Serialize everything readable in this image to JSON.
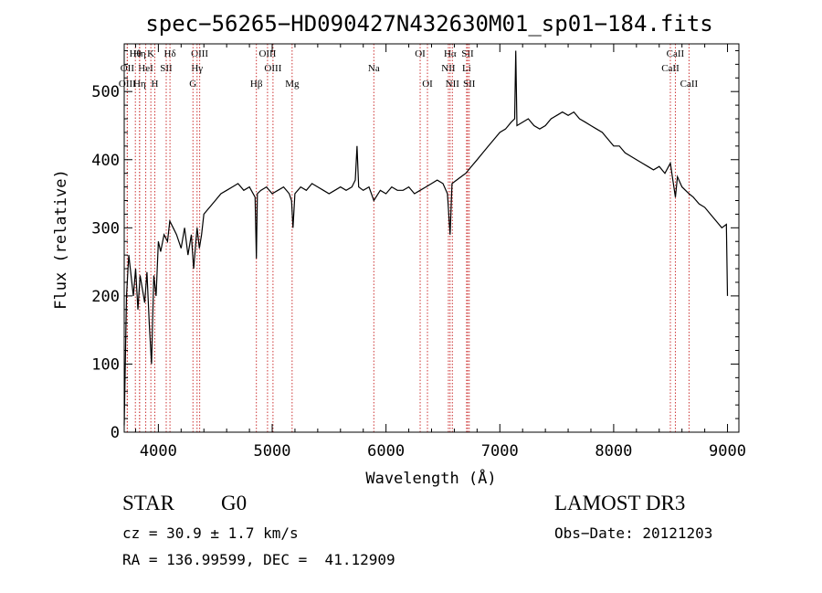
{
  "chart_data": {
    "type": "line",
    "title": "spec−56265−HD090427N432630M01_sp01−184.fits",
    "xlabel": "Wavelength (Å)",
    "ylabel": "Flux (relative)",
    "xlim": [
      3700,
      9100
    ],
    "ylim": [
      0,
      570
    ],
    "xticks": [
      4000,
      5000,
      6000,
      7000,
      8000,
      9000
    ],
    "yticks": [
      0,
      100,
      200,
      300,
      400,
      500
    ],
    "grid": false,
    "line_color": "#000000",
    "marker_color": "#cc3333",
    "series": [
      {
        "x": [
          3700,
          3720,
          3740,
          3760,
          3780,
          3800,
          3820,
          3840,
          3860,
          3880,
          3900,
          3920,
          3940,
          3960,
          3980,
          4000,
          4020,
          4050,
          4080,
          4100,
          4130,
          4160,
          4200,
          4230,
          4260,
          4290,
          4310,
          4330,
          4340,
          4360,
          4380,
          4400,
          4450,
          4500,
          4550,
          4600,
          4650,
          4700,
          4750,
          4800,
          4850,
          4861,
          4870,
          4900,
          4950,
          5000,
          5050,
          5100,
          5150,
          5170,
          5183,
          5200,
          5250,
          5300,
          5350,
          5400,
          5450,
          5500,
          5550,
          5600,
          5650,
          5700,
          5730,
          5745,
          5760,
          5800,
          5850,
          5893,
          5950,
          6000,
          6050,
          6100,
          6150,
          6200,
          6250,
          6300,
          6350,
          6400,
          6450,
          6500,
          6540,
          6563,
          6580,
          6620,
          6660,
          6700,
          6750,
          6800,
          6850,
          6900,
          6950,
          7000,
          7050,
          7100,
          7130,
          7140,
          7150,
          7200,
          7250,
          7300,
          7350,
          7400,
          7450,
          7500,
          7550,
          7600,
          7650,
          7700,
          7750,
          7800,
          7850,
          7900,
          7950,
          8000,
          8050,
          8100,
          8150,
          8200,
          8250,
          8300,
          8350,
          8400,
          8450,
          8498,
          8520,
          8542,
          8560,
          8600,
          8662,
          8700,
          8750,
          8800,
          8850,
          8900,
          8950,
          8990,
          9000
        ],
        "y": [
          10,
          200,
          260,
          230,
          200,
          240,
          180,
          230,
          210,
          190,
          235,
          160,
          100,
          230,
          200,
          280,
          265,
          290,
          280,
          310,
          300,
          290,
          270,
          300,
          260,
          290,
          240,
          280,
          300,
          270,
          290,
          320,
          330,
          340,
          350,
          355,
          360,
          365,
          355,
          360,
          345,
          255,
          350,
          355,
          360,
          350,
          355,
          360,
          350,
          340,
          300,
          350,
          360,
          355,
          365,
          360,
          355,
          350,
          355,
          360,
          355,
          360,
          370,
          420,
          360,
          355,
          360,
          340,
          355,
          350,
          360,
          355,
          355,
          360,
          350,
          355,
          360,
          365,
          370,
          365,
          350,
          290,
          365,
          370,
          375,
          380,
          390,
          400,
          410,
          420,
          430,
          440,
          445,
          455,
          460,
          560,
          450,
          455,
          460,
          450,
          445,
          450,
          460,
          465,
          470,
          465,
          470,
          460,
          455,
          450,
          445,
          440,
          430,
          420,
          420,
          410,
          405,
          400,
          395,
          390,
          385,
          390,
          380,
          395,
          370,
          345,
          375,
          360,
          350,
          345,
          335,
          330,
          320,
          310,
          300,
          305,
          200
        ]
      }
    ],
    "lines": [
      {
        "label": "Hθ",
        "x": 3798,
        "row": 1
      },
      {
        "label": "OII",
        "x": 3727,
        "row": 2
      },
      {
        "label": "OIII",
        "x": 3727,
        "row": 3
      },
      {
        "label": "Hη",
        "x": 3835,
        "row": 1
      },
      {
        "label": "HeI",
        "x": 3889,
        "row": 2
      },
      {
        "label": "Hη",
        "x": 3835,
        "row": 3
      },
      {
        "label": "K",
        "x": 3934,
        "row": 1
      },
      {
        "label": "SII",
        "x": 4069,
        "row": 2
      },
      {
        "label": "H",
        "x": 3969,
        "row": 3
      },
      {
        "label": "Hδ",
        "x": 4102,
        "row": 1
      },
      {
        "label": "OIII",
        "x": 4363,
        "row": 1
      },
      {
        "label": "Hγ",
        "x": 4340,
        "row": 2
      },
      {
        "label": "G",
        "x": 4304,
        "row": 3
      },
      {
        "label": "Hβ",
        "x": 4861,
        "row": 3
      },
      {
        "label": "OIII",
        "x": 4959,
        "row": 1
      },
      {
        "label": "OIII",
        "x": 5007,
        "row": 2
      },
      {
        "label": "Mg",
        "x": 5175,
        "row": 3
      },
      {
        "label": "Na",
        "x": 5893,
        "row": 2
      },
      {
        "label": "OI",
        "x": 6300,
        "row": 1
      },
      {
        "label": "OI",
        "x": 6364,
        "row": 3
      },
      {
        "label": "Hα",
        "x": 6563,
        "row": 1
      },
      {
        "label": "NII",
        "x": 6548,
        "row": 2
      },
      {
        "label": "NII",
        "x": 6583,
        "row": 3
      },
      {
        "label": "SII",
        "x": 6717,
        "row": 1
      },
      {
        "label": "Li",
        "x": 6708,
        "row": 2
      },
      {
        "label": "SII",
        "x": 6731,
        "row": 3
      },
      {
        "label": "CaII",
        "x": 8542,
        "row": 1
      },
      {
        "label": "CaII",
        "x": 8498,
        "row": 2
      },
      {
        "label": "CaII",
        "x": 8662,
        "row": 3
      }
    ]
  },
  "footer": {
    "object_type": "STAR",
    "subclass": "G0",
    "survey": "LAMOST DR3",
    "cz": "cz = 30.9 ± 1.7 km/s",
    "obs_date": "Obs−Date: 20121203",
    "coords": "RA = 136.99599, DEC =  41.12909"
  }
}
